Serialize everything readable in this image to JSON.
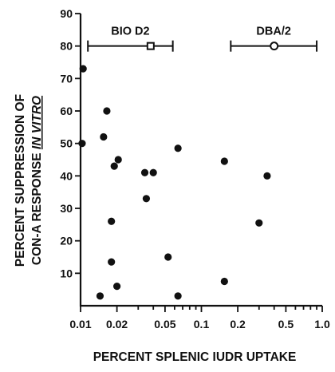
{
  "chart_data": {
    "type": "scatter",
    "xscale": "log",
    "xlim": [
      0.01,
      1.0
    ],
    "ylim": [
      0,
      90
    ],
    "xlabel": "PERCENT SPLENIC IUDR UPTAKE",
    "ylabel_line1": "PERCENT SUPPRESSION OF",
    "ylabel_line2_prefix": "CON-A RESPONSE ",
    "ylabel_line2_emph": "IN VITRO",
    "x_ticks": [
      {
        "value": 0.01,
        "label": "0.01"
      },
      {
        "value": 0.02,
        "label": "0.02"
      },
      {
        "value": 0.05,
        "label": "0.05"
      },
      {
        "value": 0.1,
        "label": "0.1"
      },
      {
        "value": 0.2,
        "label": "0.2"
      },
      {
        "value": 0.5,
        "label": "0.5"
      },
      {
        "value": 1.0,
        "label": "1.0"
      }
    ],
    "x_minor_ticks": [
      0.03,
      0.04,
      0.06,
      0.07,
      0.08,
      0.09,
      0.3,
      0.4,
      0.6,
      0.7,
      0.8,
      0.9
    ],
    "y_ticks": [
      {
        "value": 10,
        "label": "10"
      },
      {
        "value": 20,
        "label": "20"
      },
      {
        "value": 30,
        "label": "30"
      },
      {
        "value": 40,
        "label": "40"
      },
      {
        "value": 50,
        "label": "50"
      },
      {
        "value": 60,
        "label": "60"
      },
      {
        "value": 70,
        "label": "70"
      },
      {
        "value": 80,
        "label": "80"
      },
      {
        "value": 90,
        "label": "90"
      }
    ],
    "points": [
      {
        "x": 0.0105,
        "y": 73
      },
      {
        "x": 0.0103,
        "y": 50
      },
      {
        "x": 0.0165,
        "y": 60
      },
      {
        "x": 0.0155,
        "y": 52
      },
      {
        "x": 0.019,
        "y": 43
      },
      {
        "x": 0.0205,
        "y": 45
      },
      {
        "x": 0.018,
        "y": 26
      },
      {
        "x": 0.018,
        "y": 13.5
      },
      {
        "x": 0.0145,
        "y": 3
      },
      {
        "x": 0.02,
        "y": 6
      },
      {
        "x": 0.034,
        "y": 41
      },
      {
        "x": 0.04,
        "y": 41
      },
      {
        "x": 0.035,
        "y": 33
      },
      {
        "x": 0.053,
        "y": 15
      },
      {
        "x": 0.064,
        "y": 48.5
      },
      {
        "x": 0.064,
        "y": 3
      },
      {
        "x": 0.155,
        "y": 44.5
      },
      {
        "x": 0.155,
        "y": 7.5
      },
      {
        "x": 0.3,
        "y": 25.5
      },
      {
        "x": 0.35,
        "y": 40
      }
    ],
    "ranges": [
      {
        "label": "BIO D2",
        "y": 80,
        "x_min": 0.0115,
        "x_max": 0.058,
        "mean": 0.038
      },
      {
        "label": "DBA/2",
        "y": 80,
        "x_min": 0.175,
        "x_max": 0.9,
        "mean": 0.4
      }
    ]
  }
}
